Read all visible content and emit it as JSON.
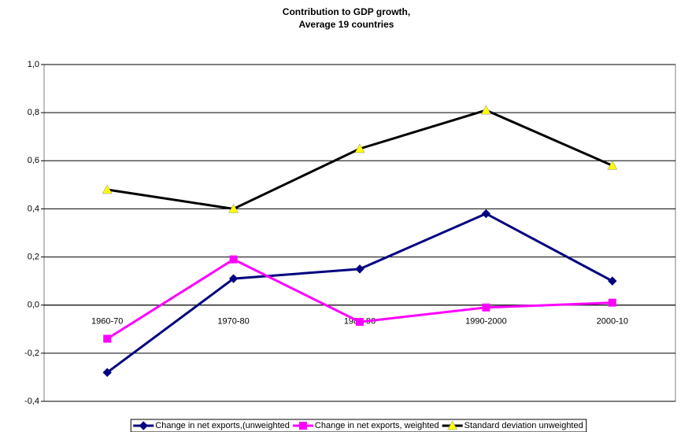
{
  "chart_data": {
    "type": "line",
    "title": "Contribution to GDP growth,",
    "subtitle": "Average 19 countries",
    "categories": [
      "1960-70",
      "1970-80",
      "1980-90",
      "1990-2000",
      "2000-10"
    ],
    "series": [
      {
        "name": "Change in net exports,(unweighted",
        "color": "#000080",
        "marker": "diamond",
        "marker_color": "#000080",
        "values": [
          -0.28,
          0.11,
          0.15,
          0.38,
          0.1
        ]
      },
      {
        "name": "Change in net exports, weighted",
        "color": "#ff00ff",
        "marker": "square",
        "marker_color": "#ff00ff",
        "values": [
          -0.14,
          0.19,
          -0.07,
          -0.01,
          0.01
        ]
      },
      {
        "name": "Standard deviation unweighted",
        "color": "#000000",
        "marker": "triangle",
        "marker_color": "#ffff00",
        "values": [
          0.48,
          0.4,
          0.65,
          0.81,
          0.58
        ]
      }
    ],
    "ylim": [
      -0.4,
      1.0
    ],
    "yticks": [
      {
        "value": -0.4,
        "label": "-0,4"
      },
      {
        "value": -0.2,
        "label": "-0,2"
      },
      {
        "value": 0,
        "label": "0,0"
      },
      {
        "value": 0.2,
        "label": "0,2"
      },
      {
        "value": 0.4,
        "label": "0,4"
      },
      {
        "value": 0.6,
        "label": "0,6"
      },
      {
        "value": 0.8,
        "label": "0,8"
      },
      {
        "value": 1.0,
        "label": "1,0"
      }
    ],
    "grid": true,
    "legend": "bottom"
  }
}
